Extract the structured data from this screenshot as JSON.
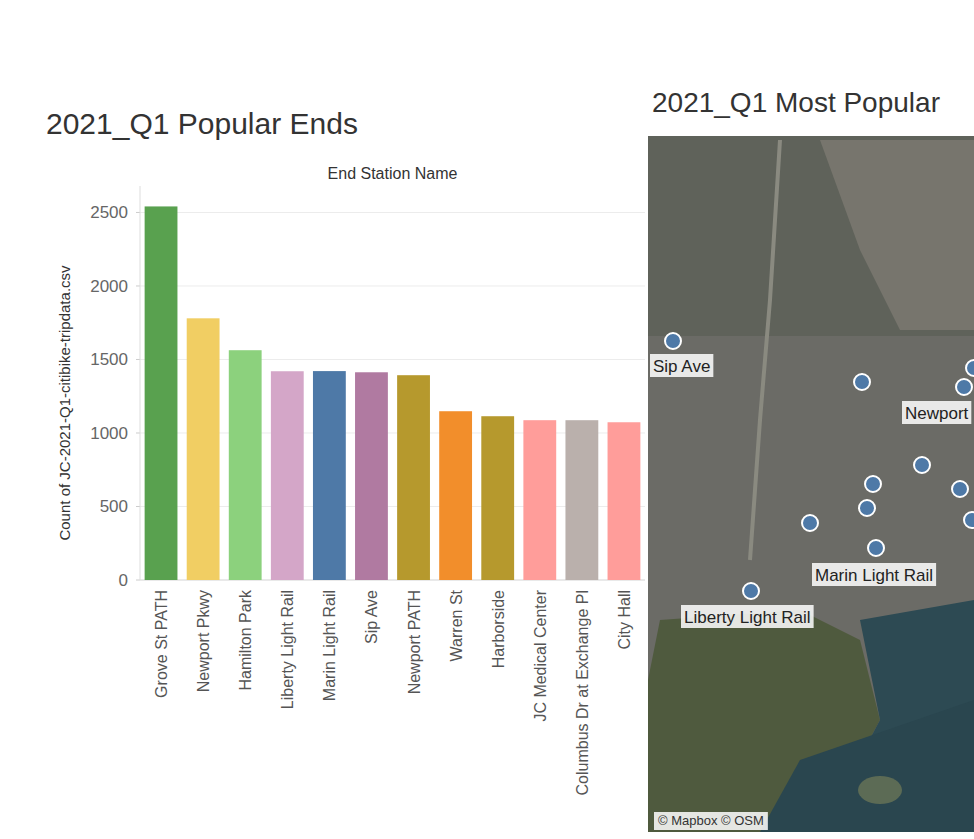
{
  "chart_data": {
    "type": "bar",
    "title": "2021_Q1 Popular Ends",
    "subtitle": "End Station Name",
    "y_label": "Count of JC-2021-Q1-citibike-tripdata.csv",
    "categories": [
      "Grove St PATH",
      "Newport Pkwy",
      "Hamilton Park",
      "Liberty Light Rail",
      "Marin Light Rail",
      "Sip Ave",
      "Newport PATH",
      "Warren St",
      "Harborside",
      "JC Medical Center",
      "Columbus Dr at Exchange Pl",
      "City Hall"
    ],
    "values": [
      2541,
      1780,
      1563,
      1420,
      1421,
      1413,
      1393,
      1148,
      1114,
      1087,
      1087,
      1073
    ],
    "colors": [
      "#59a14f",
      "#f1ce63",
      "#8cd17d",
      "#d4a6c8",
      "#4e79a7",
      "#b07aa1",
      "#b6992d",
      "#f28e2b",
      "#b6992d",
      "#ff9d9a",
      "#bab0ac",
      "#ff9d9a"
    ],
    "ylim": [
      0,
      2680
    ],
    "yticks": [
      0,
      500,
      1000,
      1500,
      2000,
      2500
    ],
    "grid": true
  },
  "map": {
    "title": "2021_Q1 Most Popular",
    "labels": [
      "Sip Ave",
      "Newport",
      "Marin Light Rail",
      "Liberty Light Rail"
    ],
    "attribution": "© Mapbox © OSM"
  }
}
